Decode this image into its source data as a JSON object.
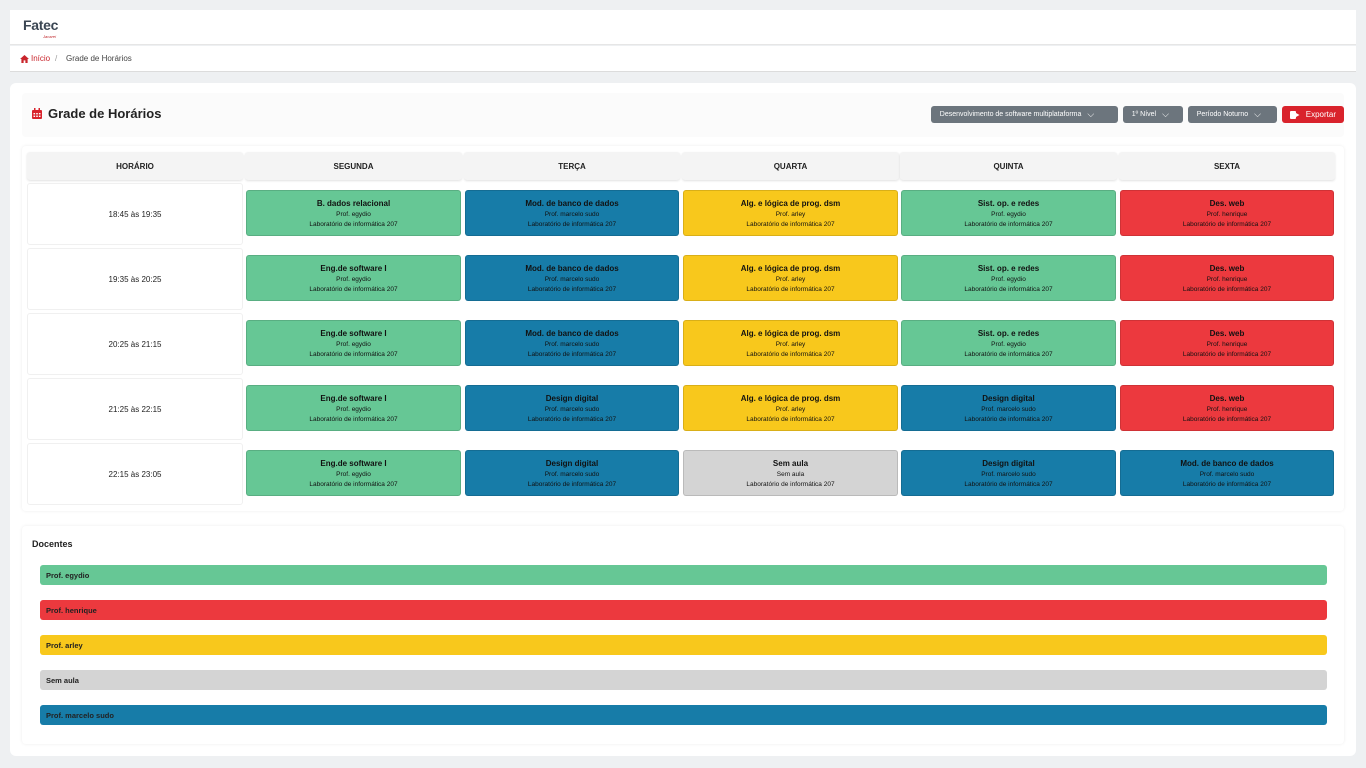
{
  "app": {
    "logo": "Fatec",
    "logo_sub": "Jacareí"
  },
  "breadcrumb": {
    "home": "Início",
    "separator": "/",
    "current": "Grade de Horários"
  },
  "header": {
    "title": "Grade de Horários",
    "course_select": "Desenvolvimento de software multiplataforma",
    "level_select": "1º Nível",
    "period_select": "Período Noturno",
    "export_label": "Exportar"
  },
  "colors": {
    "green": "#66c795",
    "blue": "#177ca8",
    "yellow": "#f8c81c",
    "red": "#ec393e",
    "gray": "#d4d4d4",
    "accent": "#d9232c"
  },
  "grid": {
    "headers": [
      "HORÁRIO",
      "SEGUNDA",
      "TERÇA",
      "QUARTA",
      "QUINTA",
      "SEXTA"
    ],
    "rows": [
      {
        "time": "18:45 às 19:35",
        "cells": [
          {
            "name": "B. dados relacional",
            "prof": "Prof. egydio",
            "room": "Laboratório de informática 207",
            "color": "green"
          },
          {
            "name": "Mod. de banco de dados",
            "prof": "Prof. marcelo sudo",
            "room": "Laboratório de informática 207",
            "color": "blue"
          },
          {
            "name": "Alg. e lógica de prog. dsm",
            "prof": "Prof. arley",
            "room": "Laboratório de informática 207",
            "color": "yellow"
          },
          {
            "name": "Sist. op. e redes",
            "prof": "Prof. egydio",
            "room": "Laboratório de informática 207",
            "color": "green"
          },
          {
            "name": "Des. web",
            "prof": "Prof. henrique",
            "room": "Laboratório de informática 207",
            "color": "red"
          }
        ]
      },
      {
        "time": "19:35 às 20:25",
        "cells": [
          {
            "name": "Eng.de software I",
            "prof": "Prof. egydio",
            "room": "Laboratório de informática 207",
            "color": "green"
          },
          {
            "name": "Mod. de banco de dados",
            "prof": "Prof. marcelo sudo",
            "room": "Laboratório de informática 207",
            "color": "blue"
          },
          {
            "name": "Alg. e lógica de prog. dsm",
            "prof": "Prof. arley",
            "room": "Laboratório de informática 207",
            "color": "yellow"
          },
          {
            "name": "Sist. op. e redes",
            "prof": "Prof. egydio",
            "room": "Laboratório de informática 207",
            "color": "green"
          },
          {
            "name": "Des. web",
            "prof": "Prof. henrique",
            "room": "Laboratório de informática 207",
            "color": "red"
          }
        ]
      },
      {
        "time": "20:25 às 21:15",
        "cells": [
          {
            "name": "Eng.de software I",
            "prof": "Prof. egydio",
            "room": "Laboratório de informática 207",
            "color": "green"
          },
          {
            "name": "Mod. de banco de dados",
            "prof": "Prof. marcelo sudo",
            "room": "Laboratório de informática 207",
            "color": "blue"
          },
          {
            "name": "Alg. e lógica de prog. dsm",
            "prof": "Prof. arley",
            "room": "Laboratório de informática 207",
            "color": "yellow"
          },
          {
            "name": "Sist. op. e redes",
            "prof": "Prof. egydio",
            "room": "Laboratório de informática 207",
            "color": "green"
          },
          {
            "name": "Des. web",
            "prof": "Prof. henrique",
            "room": "Laboratório de informática 207",
            "color": "red"
          }
        ]
      },
      {
        "time": "21:25 às 22:15",
        "cells": [
          {
            "name": "Eng.de software I",
            "prof": "Prof. egydio",
            "room": "Laboratório de informática 207",
            "color": "green"
          },
          {
            "name": "Design digital",
            "prof": "Prof. marcelo sudo",
            "room": "Laboratório de informática 207",
            "color": "blue"
          },
          {
            "name": "Alg. e lógica de prog. dsm",
            "prof": "Prof. arley",
            "room": "Laboratório de informática 207",
            "color": "yellow"
          },
          {
            "name": "Design digital",
            "prof": "Prof. marcelo sudo",
            "room": "Laboratório de informática 207",
            "color": "blue"
          },
          {
            "name": "Des. web",
            "prof": "Prof. henrique",
            "room": "Laboratório de informática 207",
            "color": "red"
          }
        ]
      },
      {
        "time": "22:15 às 23:05",
        "cells": [
          {
            "name": "Eng.de software I",
            "prof": "Prof. egydio",
            "room": "Laboratório de informática 207",
            "color": "green"
          },
          {
            "name": "Design digital",
            "prof": "Prof. marcelo sudo",
            "room": "Laboratório de informática 207",
            "color": "blue"
          },
          {
            "name": "Sem aula",
            "prof": "Sem aula",
            "room": "Laboratório de informática 207",
            "color": "gray"
          },
          {
            "name": "Design digital",
            "prof": "Prof. marcelo sudo",
            "room": "Laboratório de informática 207",
            "color": "blue"
          },
          {
            "name": "Mod. de banco de dados",
            "prof": "Prof. marcelo sudo",
            "room": "Laboratório de informática 207",
            "color": "blue"
          }
        ]
      }
    ]
  },
  "docentes": {
    "title": "Docentes",
    "items": [
      {
        "label": "Prof. egydio",
        "color": "green"
      },
      {
        "label": "Prof. henrique",
        "color": "red"
      },
      {
        "label": "Prof. arley",
        "color": "yellow"
      },
      {
        "label": "Sem aula",
        "color": "gray"
      },
      {
        "label": "Prof. marcelo sudo",
        "color": "blue"
      }
    ]
  }
}
